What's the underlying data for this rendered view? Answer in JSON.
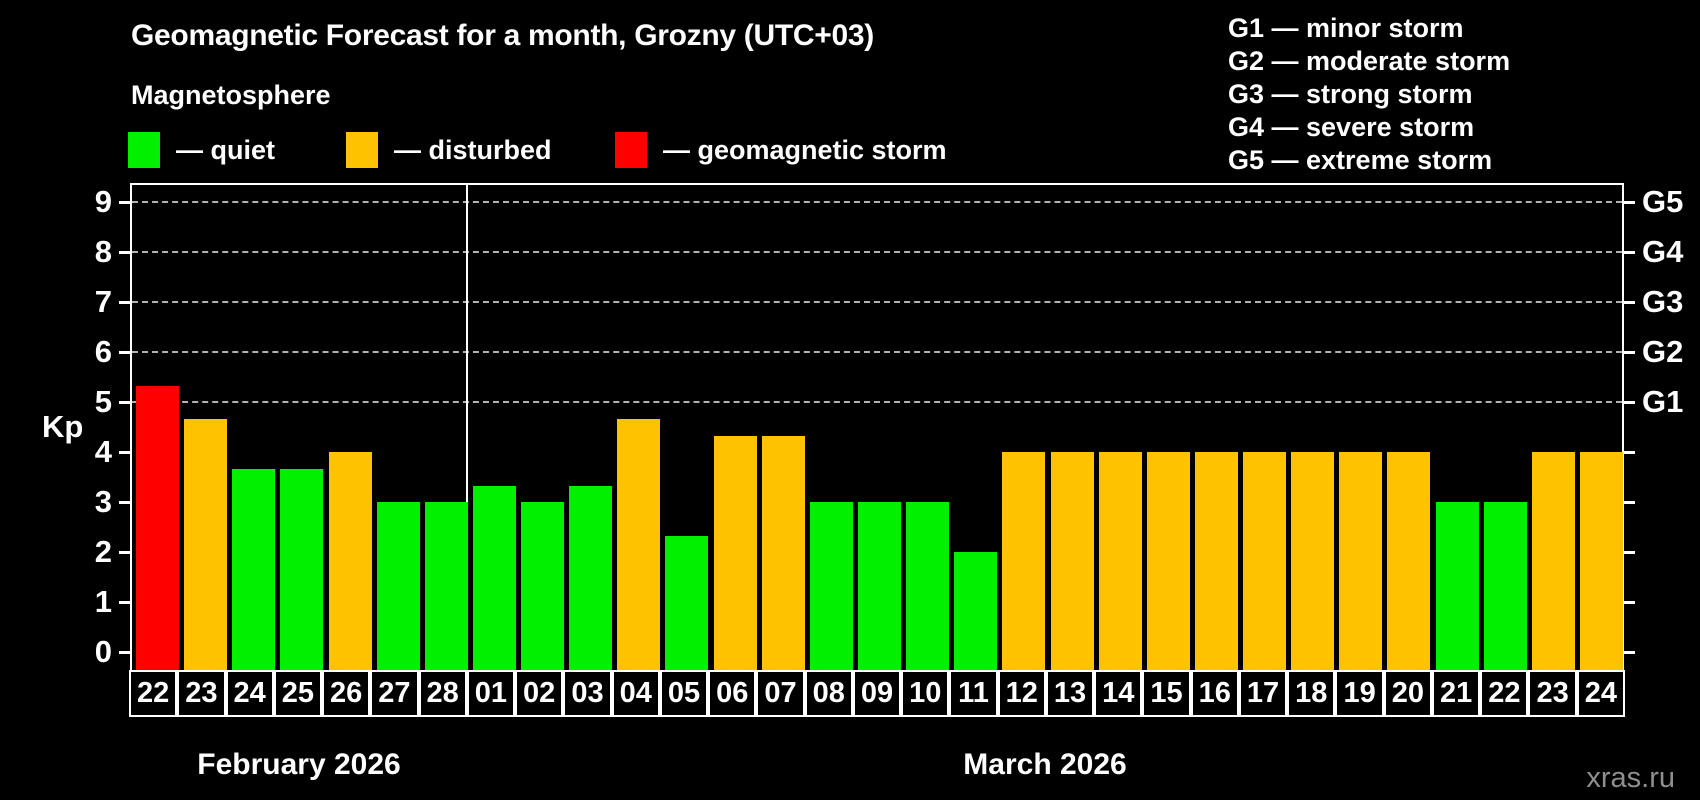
{
  "title": "Geomagnetic Forecast for a month, Grozny (UTC+03)",
  "subtitle": "Magnetosphere",
  "legend": [
    {
      "label": "— quiet",
      "state": "quiet",
      "color": "#00f000"
    },
    {
      "label": "— disturbed",
      "state": "disturbed",
      "color": "#ffc200"
    },
    {
      "label": "— geomagnetic storm",
      "state": "storm",
      "color": "#ff0000"
    }
  ],
  "g_legend": [
    "G1 — minor storm",
    "G2 — moderate storm",
    "G3 — strong storm",
    "G4 — severe storm",
    "G5 — extreme storm"
  ],
  "watermark": "xras.ru",
  "chart_data": {
    "type": "bar",
    "title": "Geomagnetic Forecast for a month, Grozny (UTC+03)",
    "ylabel": "Kp",
    "ylim": [
      0,
      9
    ],
    "yticks": [
      0,
      1,
      2,
      3,
      4,
      5,
      6,
      7,
      8,
      9
    ],
    "gridlines_at_kp": [
      5,
      6,
      7,
      8,
      9
    ],
    "grid_style": "dashed",
    "legend_position": "top",
    "right_axis": [
      {
        "kp": 5,
        "label": "G1"
      },
      {
        "kp": 6,
        "label": "G2"
      },
      {
        "kp": 7,
        "label": "G3"
      },
      {
        "kp": 8,
        "label": "G4"
      },
      {
        "kp": 9,
        "label": "G5"
      }
    ],
    "state_colors": {
      "quiet": "#00f000",
      "disturbed": "#ffc200",
      "storm": "#ff0000"
    },
    "months": [
      {
        "label": "February 2026",
        "days": [
          "22",
          "23",
          "24",
          "25",
          "26",
          "27",
          "28"
        ]
      },
      {
        "label": "March 2026",
        "days": [
          "01",
          "02",
          "03",
          "04",
          "05",
          "06",
          "07",
          "08",
          "09",
          "10",
          "11",
          "12",
          "13",
          "14",
          "15",
          "16",
          "17",
          "18",
          "19",
          "20",
          "21",
          "22",
          "23",
          "24"
        ]
      }
    ],
    "series": [
      {
        "month": "February 2026",
        "day": "22",
        "kp": 5.33,
        "state": "storm"
      },
      {
        "month": "February 2026",
        "day": "23",
        "kp": 4.67,
        "state": "disturbed"
      },
      {
        "month": "February 2026",
        "day": "24",
        "kp": 3.67,
        "state": "quiet"
      },
      {
        "month": "February 2026",
        "day": "25",
        "kp": 3.67,
        "state": "quiet"
      },
      {
        "month": "February 2026",
        "day": "26",
        "kp": 4.0,
        "state": "disturbed"
      },
      {
        "month": "February 2026",
        "day": "27",
        "kp": 3.0,
        "state": "quiet"
      },
      {
        "month": "February 2026",
        "day": "28",
        "kp": 3.0,
        "state": "quiet"
      },
      {
        "month": "March 2026",
        "day": "01",
        "kp": 3.33,
        "state": "quiet"
      },
      {
        "month": "March 2026",
        "day": "02",
        "kp": 3.0,
        "state": "quiet"
      },
      {
        "month": "March 2026",
        "day": "03",
        "kp": 3.33,
        "state": "quiet"
      },
      {
        "month": "March 2026",
        "day": "04",
        "kp": 4.67,
        "state": "disturbed"
      },
      {
        "month": "March 2026",
        "day": "05",
        "kp": 2.33,
        "state": "quiet"
      },
      {
        "month": "March 2026",
        "day": "06",
        "kp": 4.33,
        "state": "disturbed"
      },
      {
        "month": "March 2026",
        "day": "07",
        "kp": 4.33,
        "state": "disturbed"
      },
      {
        "month": "March 2026",
        "day": "08",
        "kp": 3.0,
        "state": "quiet"
      },
      {
        "month": "March 2026",
        "day": "09",
        "kp": 3.0,
        "state": "quiet"
      },
      {
        "month": "March 2026",
        "day": "10",
        "kp": 3.0,
        "state": "quiet"
      },
      {
        "month": "March 2026",
        "day": "11",
        "kp": 2.0,
        "state": "quiet"
      },
      {
        "month": "March 2026",
        "day": "12",
        "kp": 4.0,
        "state": "disturbed"
      },
      {
        "month": "March 2026",
        "day": "13",
        "kp": 4.0,
        "state": "disturbed"
      },
      {
        "month": "March 2026",
        "day": "14",
        "kp": 4.0,
        "state": "disturbed"
      },
      {
        "month": "March 2026",
        "day": "15",
        "kp": 4.0,
        "state": "disturbed"
      },
      {
        "month": "March 2026",
        "day": "16",
        "kp": 4.0,
        "state": "disturbed"
      },
      {
        "month": "March 2026",
        "day": "17",
        "kp": 4.0,
        "state": "disturbed"
      },
      {
        "month": "March 2026",
        "day": "18",
        "kp": 4.0,
        "state": "disturbed"
      },
      {
        "month": "March 2026",
        "day": "19",
        "kp": 4.0,
        "state": "disturbed"
      },
      {
        "month": "March 2026",
        "day": "20",
        "kp": 4.0,
        "state": "disturbed"
      },
      {
        "month": "March 2026",
        "day": "21",
        "kp": 3.0,
        "state": "quiet"
      },
      {
        "month": "March 2026",
        "day": "22",
        "kp": 3.0,
        "state": "quiet"
      },
      {
        "month": "March 2026",
        "day": "23",
        "kp": 4.0,
        "state": "disturbed"
      },
      {
        "month": "March 2026",
        "day": "24",
        "kp": 4.0,
        "state": "disturbed"
      }
    ]
  }
}
